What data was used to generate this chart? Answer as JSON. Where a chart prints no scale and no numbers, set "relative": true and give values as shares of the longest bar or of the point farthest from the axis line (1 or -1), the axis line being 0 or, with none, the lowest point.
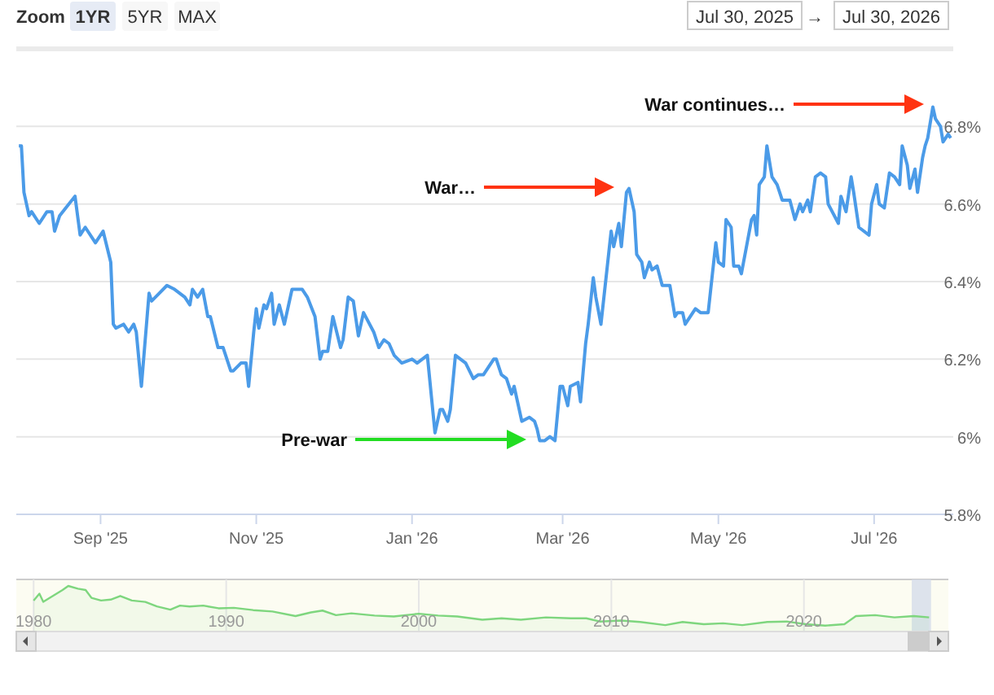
{
  "chart_data": [
    {
      "type": "other",
      "annotations": [
        "Zoom",
        "1YR",
        "5YR",
        "MAX",
        "Jul 30, 2025",
        "→",
        "Jul 30, 2026"
      ]
    },
    {
      "type": "line",
      "xlim": [
        "2025-07-30",
        "2026-08-01"
      ],
      "ylim": [
        5.8,
        7.0
      ],
      "xticks": [
        {
          "value": "2025-09-01",
          "label": "Sep '25"
        },
        {
          "value": "2025-11-01",
          "label": "Nov '25"
        },
        {
          "value": "2026-01-01",
          "label": "Jan '26"
        },
        {
          "value": "2026-03-01",
          "label": "Mar '26"
        },
        {
          "value": "2026-05-01",
          "label": "May '26"
        },
        {
          "value": "2026-07-01",
          "label": "Jul '26"
        }
      ],
      "yticks": [
        {
          "value": 5.8,
          "label": "5.8%"
        },
        {
          "value": 6.0,
          "label": "6%"
        },
        {
          "value": 6.2,
          "label": "6.2%"
        },
        {
          "value": 6.4,
          "label": "6.4%"
        },
        {
          "value": 6.6,
          "label": "6.6%"
        },
        {
          "value": 6.8,
          "label": "6.8%"
        }
      ],
      "grid": "y",
      "marker": "none",
      "line_style": "solid",
      "series": [
        {
          "color": "#4b9be8",
          "x": [
            "2025-07-31",
            "2025-08-01",
            "2025-08-02",
            "2025-08-04",
            "2025-08-05",
            "2025-08-08",
            "2025-08-11",
            "2025-08-13",
            "2025-08-14",
            "2025-08-16",
            "2025-08-22",
            "2025-08-24",
            "2025-08-26",
            "2025-08-30",
            "2025-09-02",
            "2025-09-05",
            "2025-09-06",
            "2025-09-07",
            "2025-09-10",
            "2025-09-12",
            "2025-09-14",
            "2025-09-15",
            "2025-09-17",
            "2025-09-20",
            "2025-09-21",
            "2025-09-24",
            "2025-09-27",
            "2025-09-30",
            "2025-10-04",
            "2025-10-06",
            "2025-10-07",
            "2025-10-09",
            "2025-10-11",
            "2025-10-13",
            "2025-10-14",
            "2025-10-17",
            "2025-10-19",
            "2025-10-22",
            "2025-10-23",
            "2025-10-26",
            "2025-10-28",
            "2025-10-29",
            "2025-10-31",
            "2025-11-01",
            "2025-11-02",
            "2025-11-04",
            "2025-11-05",
            "2025-11-07",
            "2025-11-08",
            "2025-11-10",
            "2025-11-12",
            "2025-11-15",
            "2025-11-19",
            "2025-11-21",
            "2025-11-24",
            "2025-11-26",
            "2025-11-27",
            "2025-11-29",
            "2025-12-01",
            "2025-12-04",
            "2025-12-05",
            "2025-12-07",
            "2025-12-09",
            "2025-12-11",
            "2025-12-13",
            "2025-12-17",
            "2025-12-19",
            "2025-12-21",
            "2025-12-23",
            "2025-12-25",
            "2025-12-28",
            "2026-01-01",
            "2026-01-03",
            "2026-01-05",
            "2026-01-07",
            "2026-01-10",
            "2026-01-12",
            "2026-01-13",
            "2026-01-15",
            "2026-01-16",
            "2026-01-18",
            "2026-01-22",
            "2026-01-25",
            "2026-01-27",
            "2026-01-29",
            "2026-02-02",
            "2026-02-03",
            "2026-02-05",
            "2026-02-07",
            "2026-02-09",
            "2026-02-10",
            "2026-02-13",
            "2026-02-16",
            "2026-02-18",
            "2026-02-19",
            "2026-02-20",
            "2026-02-22",
            "2026-02-24",
            "2026-02-26",
            "2026-02-28",
            "2026-03-01",
            "2026-03-03",
            "2026-03-04",
            "2026-03-07",
            "2026-03-08",
            "2026-03-10",
            "2026-03-11",
            "2026-03-13",
            "2026-03-14",
            "2026-03-16",
            "2026-03-18",
            "2026-03-20",
            "2026-03-21",
            "2026-03-23",
            "2026-03-24",
            "2026-03-26",
            "2026-03-27",
            "2026-03-29",
            "2026-03-30",
            "2026-04-01",
            "2026-04-02",
            "2026-04-04",
            "2026-04-05",
            "2026-04-07",
            "2026-04-09",
            "2026-04-11",
            "2026-04-12",
            "2026-04-14",
            "2026-04-15",
            "2026-04-17",
            "2026-04-18",
            "2026-04-20",
            "2026-04-22",
            "2026-04-24",
            "2026-04-27",
            "2026-04-30",
            "2026-05-01",
            "2026-05-03",
            "2026-05-04",
            "2026-05-06",
            "2026-05-07",
            "2026-05-09",
            "2026-05-10",
            "2026-05-12",
            "2026-05-14",
            "2026-05-15",
            "2026-05-16",
            "2026-05-17",
            "2026-05-19",
            "2026-05-20",
            "2026-05-22",
            "2026-05-24",
            "2026-05-26",
            "2026-05-29",
            "2026-05-31",
            "2026-06-02",
            "2026-06-03",
            "2026-06-05",
            "2026-06-06",
            "2026-06-08",
            "2026-06-10",
            "2026-06-12",
            "2026-06-13",
            "2026-06-17",
            "2026-06-18",
            "2026-06-20",
            "2026-06-22",
            "2026-06-23",
            "2026-06-25",
            "2026-06-29",
            "2026-06-30",
            "2026-07-02",
            "2026-07-03",
            "2026-07-05",
            "2026-07-07",
            "2026-07-09",
            "2026-07-11",
            "2026-07-12",
            "2026-07-14",
            "2026-07-15",
            "2026-07-17",
            "2026-07-18",
            "2026-07-20",
            "2026-07-21",
            "2026-07-22",
            "2026-07-24",
            "2026-07-25",
            "2026-07-27",
            "2026-07-28",
            "2026-07-30",
            "2026-07-31"
          ],
          "values": [
            6.75,
            6.75,
            6.63,
            6.57,
            6.58,
            6.55,
            6.58,
            6.58,
            6.53,
            6.57,
            6.62,
            6.52,
            6.54,
            6.5,
            6.53,
            6.45,
            6.29,
            6.28,
            6.29,
            6.27,
            6.29,
            6.27,
            6.13,
            6.37,
            6.35,
            6.37,
            6.39,
            6.38,
            6.36,
            6.34,
            6.38,
            6.36,
            6.38,
            6.31,
            6.31,
            6.23,
            6.23,
            6.17,
            6.17,
            6.19,
            6.19,
            6.13,
            6.27,
            6.33,
            6.28,
            6.34,
            6.33,
            6.37,
            6.29,
            6.34,
            6.29,
            6.38,
            6.38,
            6.36,
            6.31,
            6.2,
            6.22,
            6.22,
            6.31,
            6.23,
            6.25,
            6.36,
            6.35,
            6.26,
            6.32,
            6.27,
            6.23,
            6.25,
            6.24,
            6.21,
            6.19,
            6.2,
            6.19,
            6.2,
            6.21,
            6.01,
            6.07,
            6.07,
            6.04,
            6.07,
            6.21,
            6.19,
            6.15,
            6.16,
            6.16,
            6.2,
            6.2,
            6.16,
            6.15,
            6.11,
            6.13,
            6.04,
            6.05,
            6.04,
            6.02,
            5.99,
            5.99,
            6.0,
            5.99,
            6.13,
            6.13,
            6.08,
            6.13,
            6.14,
            6.09,
            6.24,
            6.29,
            6.41,
            6.36,
            6.29,
            6.41,
            6.53,
            6.49,
            6.55,
            6.49,
            6.63,
            6.64,
            6.58,
            6.47,
            6.45,
            6.41,
            6.45,
            6.43,
            6.44,
            6.39,
            6.39,
            6.39,
            6.31,
            6.32,
            6.32,
            6.29,
            6.31,
            6.33,
            6.32,
            6.32,
            6.5,
            6.45,
            6.44,
            6.56,
            6.54,
            6.44,
            6.44,
            6.42,
            6.49,
            6.56,
            6.57,
            6.52,
            6.65,
            6.67,
            6.75,
            6.67,
            6.65,
            6.61,
            6.61,
            6.56,
            6.6,
            6.58,
            6.61,
            6.58,
            6.67,
            6.68,
            6.67,
            6.6,
            6.55,
            6.62,
            6.58,
            6.67,
            6.63,
            6.54,
            6.52,
            6.6,
            6.65,
            6.6,
            6.59,
            6.68,
            6.67,
            6.65,
            6.75,
            6.7,
            6.64,
            6.69,
            6.63,
            6.72,
            6.75,
            6.77,
            6.85,
            6.82,
            6.8,
            6.76,
            6.78,
            6.77
          ]
        }
      ],
      "annotations": [
        "Pre-war",
        "War…",
        "War continues…"
      ]
    },
    {
      "type": "area",
      "relative": true,
      "xlim": [
        1979.1,
        2027.5
      ],
      "xticks": [
        1980,
        1990,
        2000,
        2010,
        2020
      ],
      "grid": "x",
      "bands": [
        {
          "axis": "x",
          "from": 2025.6,
          "to": 2026.6,
          "color": "#d4dcea"
        }
      ],
      "series": [
        {
          "color": "#7ed67e",
          "x": [
            1980.0,
            1980.3,
            1980.5,
            1981.0,
            1981.5,
            1981.8,
            1982.3,
            1982.7,
            1983.0,
            1983.5,
            1984.0,
            1984.5,
            1985.1,
            1985.8,
            1986.4,
            1987.1,
            1987.6,
            1988.1,
            1988.8,
            1989.6,
            1990.4,
            1991.4,
            1992.4,
            1993.6,
            1994.4,
            1995.0,
            1995.7,
            1996.5,
            1997.7,
            1998.7,
            2000.0,
            2001.0,
            2002.0,
            2003.3,
            2004.3,
            2005.3,
            2006.6,
            2007.9,
            2008.7,
            2009.4,
            2010.5,
            2011.5,
            2012.8,
            2013.7,
            2014.8,
            2015.8,
            2016.8,
            2018.1,
            2019.1,
            2020.1,
            2021.1,
            2022.1,
            2022.7,
            2023.7,
            2024.7,
            2025.7,
            2026.5
          ],
          "values": [
            0.68,
            0.83,
            0.65,
            0.78,
            0.91,
            1.0,
            0.94,
            0.91,
            0.74,
            0.68,
            0.7,
            0.78,
            0.68,
            0.65,
            0.55,
            0.48,
            0.57,
            0.55,
            0.57,
            0.51,
            0.52,
            0.47,
            0.44,
            0.34,
            0.42,
            0.46,
            0.36,
            0.4,
            0.35,
            0.33,
            0.39,
            0.35,
            0.33,
            0.26,
            0.29,
            0.26,
            0.31,
            0.29,
            0.29,
            0.22,
            0.24,
            0.21,
            0.14,
            0.21,
            0.16,
            0.18,
            0.14,
            0.21,
            0.22,
            0.16,
            0.13,
            0.16,
            0.34,
            0.36,
            0.31,
            0.34,
            0.31
          ]
        }
      ]
    }
  ]
}
